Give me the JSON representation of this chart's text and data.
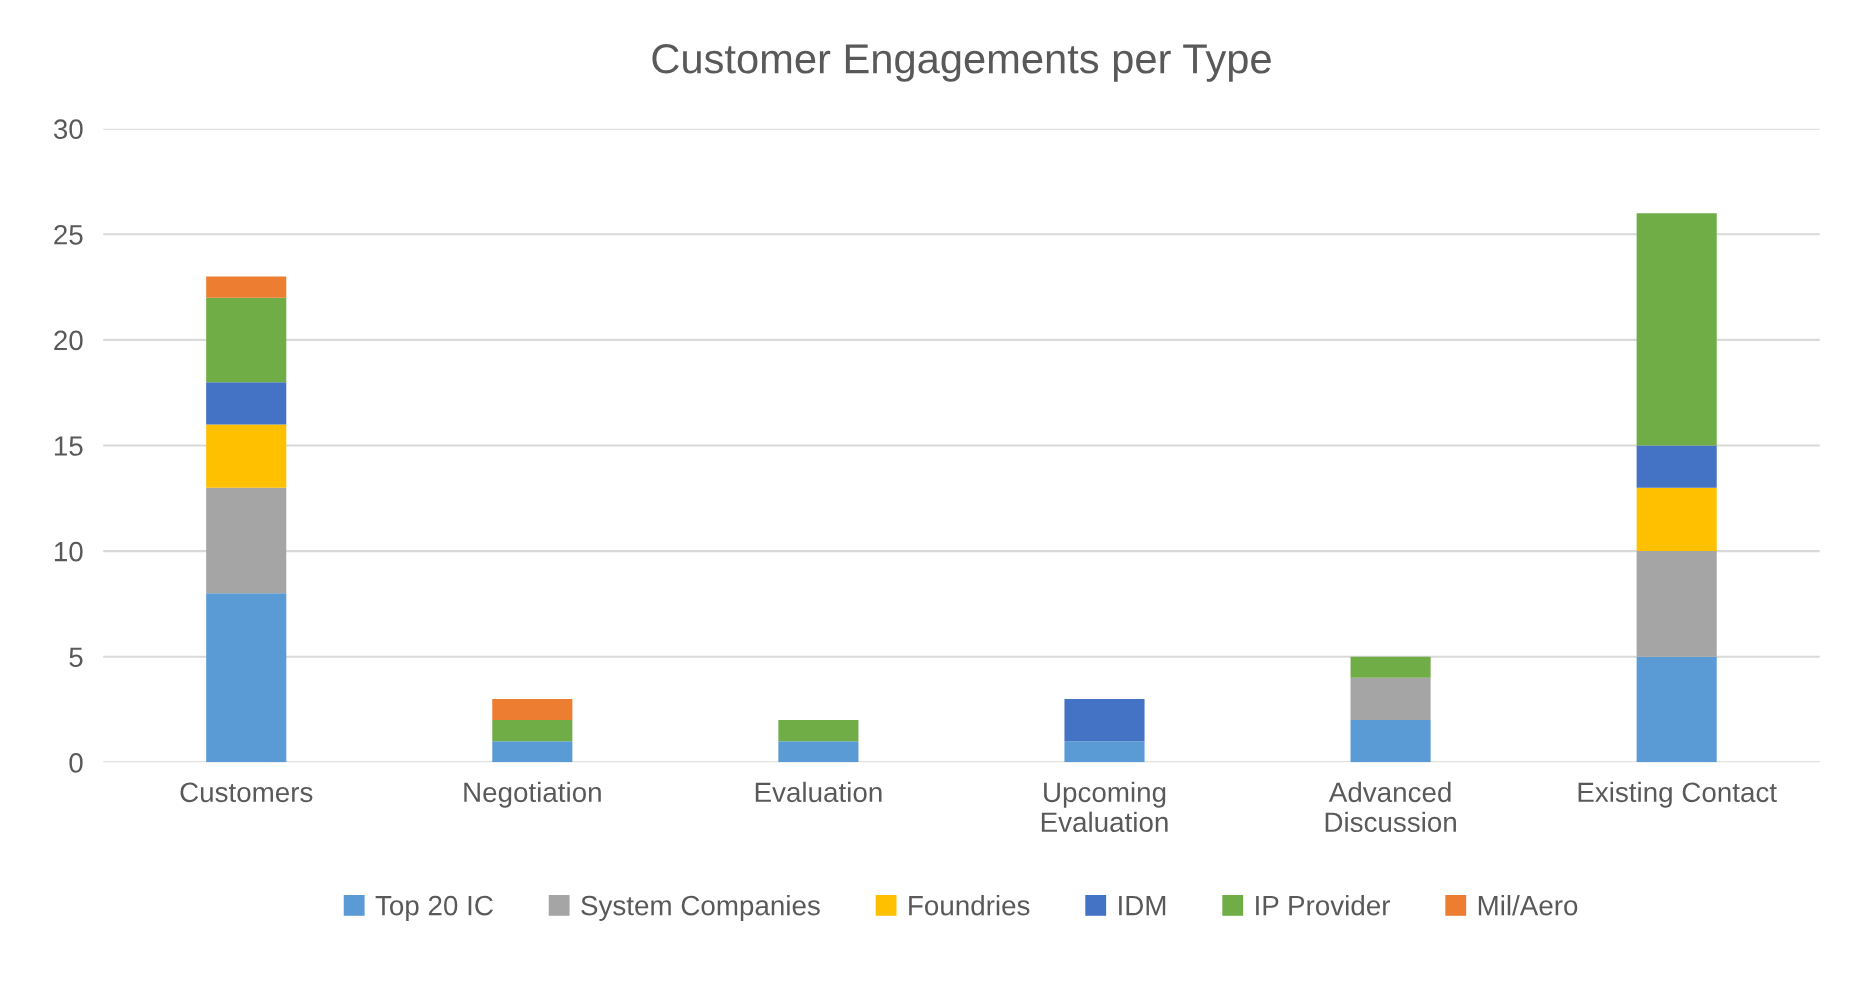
{
  "chart_data": {
    "type": "bar",
    "title": "Customer Engagements per Type",
    "stacked": true,
    "categories": [
      "Customers",
      "Negotiation",
      "Evaluation",
      "Upcoming\nEvaluation",
      "Advanced\nDiscussion",
      "Existing Contact"
    ],
    "series": [
      {
        "name": "Top 20 IC",
        "color": "#5b9bd5",
        "values": [
          8,
          1,
          1,
          1,
          2,
          5
        ]
      },
      {
        "name": "System Companies",
        "color": "#a5a5a5",
        "values": [
          5,
          0,
          0,
          0,
          2,
          5
        ]
      },
      {
        "name": "Foundries",
        "color": "#ffc000",
        "values": [
          3,
          0,
          0,
          0,
          0,
          3
        ]
      },
      {
        "name": "IDM",
        "color": "#4472c4",
        "values": [
          2,
          0,
          0,
          2,
          0,
          2
        ]
      },
      {
        "name": "IP Provider",
        "color": "#70ad47",
        "values": [
          4,
          1,
          1,
          0,
          1,
          11
        ]
      },
      {
        "name": "Mil/Aero",
        "color": "#ed7d31",
        "values": [
          1,
          1,
          0,
          0,
          0,
          0
        ]
      }
    ],
    "ylim": [
      0,
      30
    ],
    "yticks": [
      0,
      5,
      10,
      15,
      20,
      25,
      30
    ],
    "grid": "y",
    "legend": "bottom"
  }
}
